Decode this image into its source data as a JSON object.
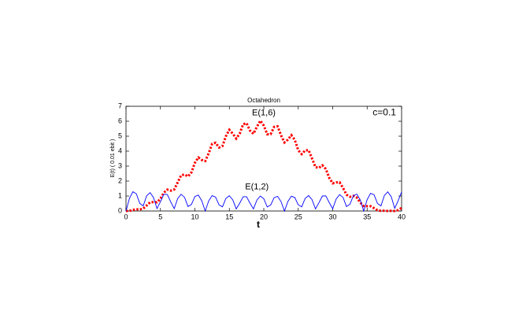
{
  "chart_data": {
    "type": "line",
    "title": "Octahedron",
    "xlabel": "t",
    "ylabel": "E(t) ( 0.01 ebit )",
    "annotations": [
      "E(1,6)",
      "c=0.1",
      "E(1,2)"
    ],
    "x": [
      0,
      0.5,
      1,
      1.5,
      2,
      2.5,
      3,
      3.5,
      4,
      4.5,
      5,
      5.5,
      6,
      6.5,
      7,
      7.5,
      8,
      8.5,
      9,
      9.5,
      10,
      10.5,
      11,
      11.5,
      12,
      12.5,
      13,
      13.5,
      14,
      14.5,
      15,
      15.5,
      16,
      16.5,
      17,
      17.5,
      18,
      18.5,
      19,
      19.5,
      20,
      20.5,
      21,
      21.5,
      22,
      22.5,
      23,
      23.5,
      24,
      24.5,
      25,
      25.5,
      26,
      26.5,
      27,
      27.5,
      28,
      28.5,
      29,
      29.5,
      30,
      30.5,
      31,
      31.5,
      32,
      32.5,
      33,
      33.5,
      34,
      34.5,
      35,
      35.5,
      36,
      36.5,
      37,
      37.5,
      38,
      38.5,
      39,
      39.5,
      40
    ],
    "series": [
      {
        "name": "E(1,6)",
        "color": "#ff0000",
        "style": "dotted",
        "values": [
          0,
          0.01,
          0.07,
          0.12,
          0.1,
          0.16,
          0.37,
          0.58,
          0.6,
          0.58,
          0.82,
          1.23,
          1.43,
          1.36,
          1.44,
          1.91,
          2.39,
          2.44,
          2.31,
          2.58,
          3.22,
          3.58,
          3.41,
          3.34,
          3.85,
          4.49,
          4.56,
          4.24,
          4.34,
          5.0,
          5.43,
          5.17,
          4.84,
          5.17,
          5.8,
          5.87,
          5.37,
          5.16,
          5.63,
          6.04,
          5.71,
          5.13,
          5.14,
          5.62,
          5.66,
          5.06,
          4.58,
          4.77,
          5.07,
          4.75,
          4.06,
          3.8,
          4.05,
          4.07,
          3.51,
          2.93,
          2.88,
          3.05,
          2.81,
          2.21,
          1.85,
          1.91,
          1.92,
          1.54,
          1.09,
          0.95,
          1.01,
          0.89,
          0.56,
          0.33,
          0.32,
          0.32,
          0.19,
          0.05,
          0.01,
          0.02,
          0,
          0.01,
          0,
          0.06,
          0.21
        ]
      },
      {
        "name": "E(1,2)",
        "color": "#0000ff",
        "style": "solid",
        "values": [
          0,
          0.84,
          1.29,
          1.15,
          0.51,
          0.34,
          1.02,
          1.23,
          0.89,
          0.16,
          0.62,
          1.12,
          1.1,
          0.6,
          0.16,
          0.83,
          1.12,
          0.91,
          0.3,
          0.44,
          0.97,
          1.06,
          0.68,
          0,
          0.67,
          1.03,
          0.93,
          0.41,
          0.28,
          0.84,
          1.02,
          0.74,
          0.14,
          0.52,
          0.95,
          0.95,
          0.52,
          0.14,
          0.73,
          1.0,
          0.82,
          0.27,
          0.4,
          0.89,
          0.98,
          0.63,
          0,
          0.64,
          0.99,
          0.9,
          0.41,
          0.28,
          0.84,
          1.03,
          0.76,
          0.14,
          0.55,
          1.0,
          1.01,
          0.56,
          0.15,
          0.8,
          1.1,
          0.91,
          0.3,
          0.45,
          1.02,
          1.13,
          0.74,
          0,
          0.76,
          1.18,
          1.09,
          0.5,
          0.34,
          1.04,
          1.28,
          0.95,
          0.18,
          0.69,
          1.27
        ]
      }
    ],
    "xlim": [
      0,
      40
    ],
    "xticks": [
      0,
      5,
      10,
      15,
      20,
      25,
      30,
      35,
      40
    ],
    "ylim": [
      0,
      7
    ],
    "yticks": [
      0,
      1,
      2,
      3,
      4,
      5,
      6,
      7
    ],
    "grid": false
  }
}
